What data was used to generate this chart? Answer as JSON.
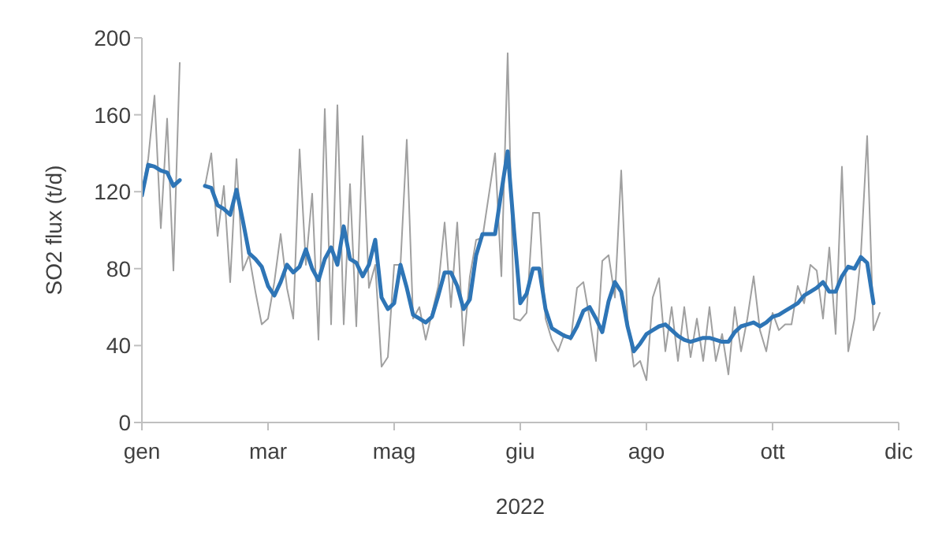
{
  "chart_data": {
    "type": "line",
    "xlabel": "2022",
    "ylabel": "SO2 flux (t/d)",
    "marker": "none",
    "line_style": "solid",
    "grid": false,
    "categories": [
      "gen",
      null,
      null,
      null,
      null,
      null,
      null,
      null,
      null,
      null,
      null,
      null,
      null,
      null,
      null,
      null,
      null,
      null,
      null,
      null,
      "mar",
      null,
      null,
      null,
      null,
      null,
      null,
      null,
      null,
      null,
      null,
      null,
      null,
      null,
      null,
      null,
      null,
      null,
      null,
      null,
      "mag",
      null,
      null,
      null,
      null,
      null,
      null,
      null,
      null,
      null,
      null,
      null,
      null,
      null,
      null,
      null,
      null,
      null,
      null,
      null,
      "giu",
      null,
      null,
      null,
      null,
      null,
      null,
      null,
      null,
      null,
      null,
      null,
      null,
      null,
      null,
      null,
      null,
      null,
      null,
      null,
      "ago",
      null,
      null,
      null,
      null,
      null,
      null,
      null,
      null,
      null,
      null,
      null,
      null,
      null,
      null,
      null,
      null,
      null,
      null,
      null,
      "ott",
      null,
      null,
      null,
      null,
      null,
      null,
      null,
      null,
      null,
      null,
      null,
      null,
      null,
      null,
      null,
      null,
      null,
      null,
      null,
      "dic"
    ],
    "ylim": [
      0,
      200
    ],
    "yticks": [
      0,
      40,
      80,
      120,
      160,
      200
    ],
    "series": [
      {
        "color": "#a0a0a0",
        "values": [
          120,
          137,
          170,
          101,
          158,
          79,
          187,
          null,
          null,
          null,
          123,
          140,
          97,
          123,
          73,
          137,
          79,
          87,
          68,
          51,
          54,
          73,
          98,
          70,
          54,
          142,
          82,
          119,
          43,
          163,
          51,
          165,
          51,
          124,
          50,
          149,
          70,
          82,
          29,
          34,
          82,
          82,
          147,
          54,
          60,
          43,
          57,
          71,
          104,
          60,
          104,
          40,
          76,
          95,
          96,
          118,
          140,
          76,
          192,
          54,
          53,
          57,
          109,
          109,
          54,
          43,
          37,
          46,
          43,
          70,
          73,
          54,
          32,
          84,
          87,
          65,
          131,
          54,
          29,
          32,
          22,
          65,
          75,
          37,
          60,
          32,
          60,
          34,
          54,
          32,
          60,
          32,
          46,
          25,
          60,
          37,
          54,
          76,
          48,
          37,
          57,
          48,
          51,
          51,
          71,
          62,
          82,
          79,
          54,
          91,
          46,
          133,
          37,
          54,
          87,
          149,
          48,
          57,
          null,
          null,
          null
        ]
      },
      {
        "color": "#2e75b6",
        "values": [
          118,
          134,
          133,
          131,
          130,
          123,
          126,
          null,
          null,
          null,
          123,
          122,
          113,
          111,
          108,
          121,
          105,
          88,
          85,
          81,
          71,
          66,
          73,
          82,
          78,
          81,
          90,
          80,
          74,
          85,
          91,
          82,
          102,
          85,
          83,
          76,
          82,
          95,
          65,
          59,
          62,
          82,
          70,
          56,
          54,
          52,
          55,
          66,
          78,
          78,
          71,
          59,
          64,
          87,
          98,
          98,
          98,
          120,
          141,
          100,
          62,
          67,
          80,
          80,
          59,
          49,
          47,
          45,
          44,
          50,
          58,
          60,
          54,
          47,
          63,
          73,
          68,
          50,
          37,
          41,
          46,
          48,
          50,
          51,
          48,
          45,
          43,
          42,
          43,
          44,
          44,
          43,
          42,
          42,
          47,
          50,
          51,
          52,
          50,
          52,
          55,
          56,
          58,
          60,
          62,
          66,
          68,
          70,
          73,
          68,
          68,
          76,
          81,
          80,
          86,
          83,
          62,
          null,
          null,
          null,
          null
        ]
      }
    ]
  }
}
